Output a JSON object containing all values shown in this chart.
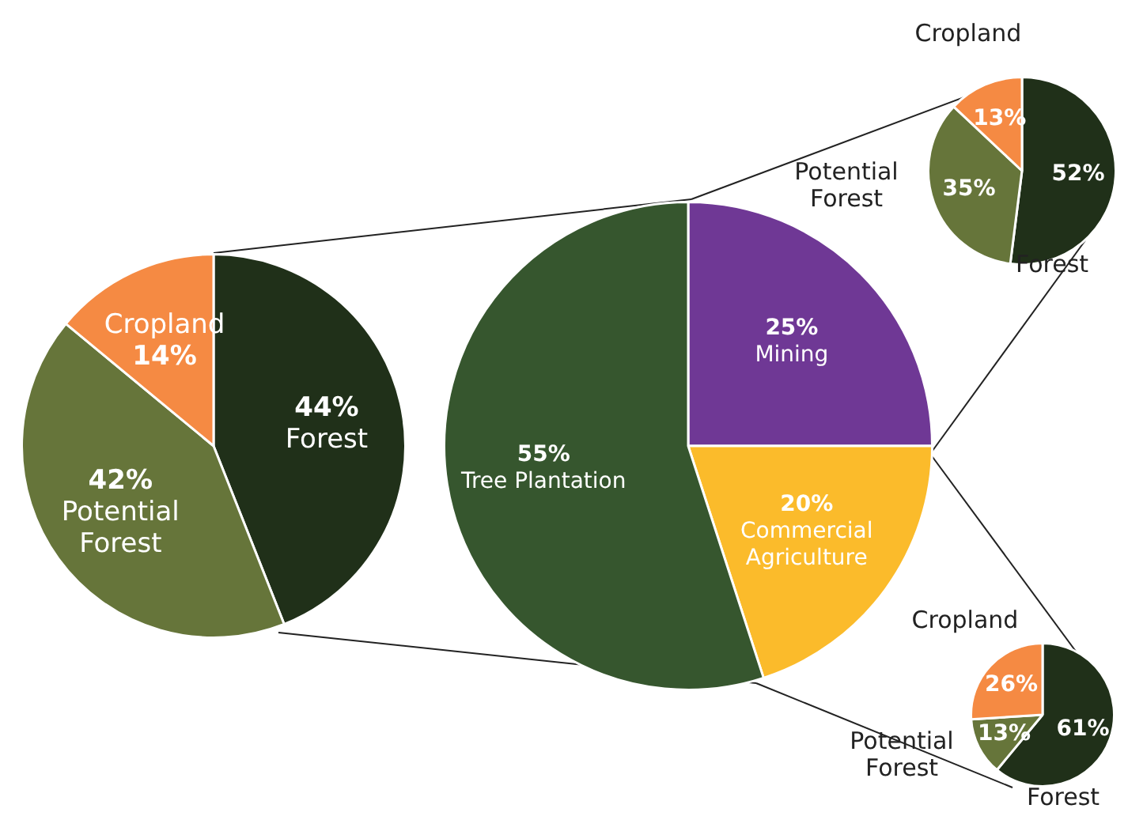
{
  "chart_data": [
    {
      "type": "pie",
      "categories": [
        "Forest",
        "Potential Forest",
        "Cropland"
      ],
      "values": [
        44,
        42,
        14
      ],
      "colors": [
        "#203019",
        "#66753a",
        "#f58a43"
      ],
      "value_labels": [
        "44%",
        "42%",
        "14%"
      ]
    },
    {
      "type": "pie",
      "categories": [
        "Mining",
        "Commercial Agriculture",
        "Tree Plantation"
      ],
      "values": [
        25,
        20,
        55
      ],
      "colors": [
        "#6f3895",
        "#fbbb2b",
        "#36562e"
      ],
      "value_labels": [
        "25%",
        "20%",
        "55%"
      ]
    },
    {
      "type": "pie",
      "categories": [
        "Forest",
        "Potential Forest",
        "Cropland"
      ],
      "values": [
        52,
        35,
        13
      ],
      "colors": [
        "#203019",
        "#66753a",
        "#f58a43"
      ],
      "value_labels": [
        "52%",
        "35%",
        "13%"
      ]
    },
    {
      "type": "pie",
      "categories": [
        "Forest",
        "Potential Forest",
        "Cropland"
      ],
      "values": [
        61,
        13,
        26
      ],
      "colors": [
        "#203019",
        "#66753a",
        "#f58a43"
      ],
      "value_labels": [
        "61%",
        "13%",
        "26%"
      ]
    }
  ]
}
